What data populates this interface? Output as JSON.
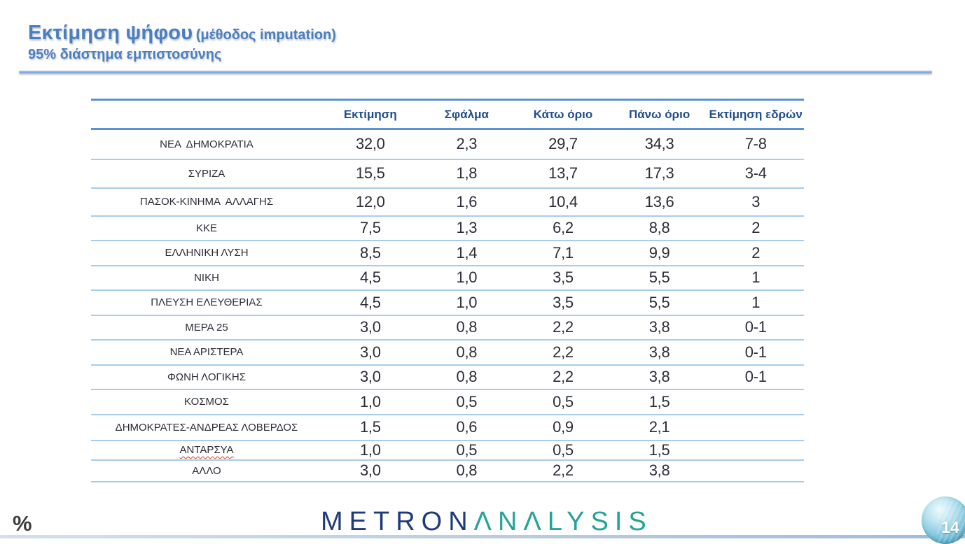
{
  "header": {
    "title": "Εκτίμηση ψήφου",
    "title_suffix": "(μέθοδος imputation)",
    "subtitle": "95% διάστημα εμπιστοσύνης"
  },
  "table": {
    "columns": [
      "",
      "Εκτίμηση",
      "Σφάλμα",
      "Κάτω όριο",
      "Πάνω όριο",
      "Εκτίμηση εδρών"
    ],
    "rows": [
      {
        "party": "ΝΕΑ  ΔΗΜΟΚΡΑΤΙΑ",
        "estimate": "32,0",
        "error": "2,3",
        "lower": "29,7",
        "upper": "34,3",
        "seats": "7-8"
      },
      {
        "party": "ΣΥΡΙΖΑ",
        "estimate": "15,5",
        "error": "1,8",
        "lower": "13,7",
        "upper": "17,3",
        "seats": "3-4"
      },
      {
        "party": "ΠΑΣΟΚ-ΚΙΝΗΜΑ  ΑΛΛΑΓΗΣ",
        "estimate": "12,0",
        "error": "1,6",
        "lower": "10,4",
        "upper": "13,6",
        "seats": "3"
      },
      {
        "party": "ΚΚΕ",
        "estimate": "7,5",
        "error": "1,3",
        "lower": "6,2",
        "upper": "8,8",
        "seats": "2"
      },
      {
        "party": "ΕΛΛΗΝΙΚΗ ΛΥΣΗ",
        "estimate": "8,5",
        "error": "1,4",
        "lower": "7,1",
        "upper": "9,9",
        "seats": "2"
      },
      {
        "party": "ΝΙΚΗ",
        "estimate": "4,5",
        "error": "1,0",
        "lower": "3,5",
        "upper": "5,5",
        "seats": "1"
      },
      {
        "party": "ΠΛΕΥΣΗ ΕΛΕΥΘΕΡΙΑΣ",
        "estimate": "4,5",
        "error": "1,0",
        "lower": "3,5",
        "upper": "5,5",
        "seats": "1"
      },
      {
        "party": "ΜΕΡΑ 25",
        "estimate": "3,0",
        "error": "0,8",
        "lower": "2,2",
        "upper": "3,8",
        "seats": "0-1"
      },
      {
        "party": "ΝΕΑ ΑΡΙΣΤΕΡΑ",
        "estimate": "3,0",
        "error": "0,8",
        "lower": "2,2",
        "upper": "3,8",
        "seats": "0-1"
      },
      {
        "party": "ΦΩΝΗ ΛΟΓΙΚΗΣ",
        "estimate": "3,0",
        "error": "0,8",
        "lower": "2,2",
        "upper": "3,8",
        "seats": "0-1"
      },
      {
        "party": "ΚΟΣΜΟΣ",
        "estimate": "1,0",
        "error": "0,5",
        "lower": "0,5",
        "upper": "1,5",
        "seats": ""
      },
      {
        "party": "ΔΗΜΟΚΡΑΤΕΣ-ΑΝΔΡΕΑΣ ΛΟΒΕΡΔΟΣ",
        "estimate": "1,5",
        "error": "0,6",
        "lower": "0,9",
        "upper": "2,1",
        "seats": ""
      },
      {
        "party": "ΑΝΤΑΡΣΥΑ",
        "estimate": "1,0",
        "error": "0,5",
        "lower": "0,5",
        "upper": "1,5",
        "seats": "",
        "spellcheck_underline": true
      },
      {
        "party": "ΑΛΛΟ",
        "estimate": "3,0",
        "error": "0,8",
        "lower": "2,2",
        "upper": "3,8",
        "seats": ""
      }
    ]
  },
  "footer": {
    "percent_mark": "%",
    "logo_metron": "METRON",
    "logo_analysis": "ΛNΛLYSIS",
    "page_number": "14"
  },
  "colors": {
    "title_blue": "#4a7fc1",
    "header_text_blue": "#1f4e8c",
    "strong_line_blue": "#5b93cf",
    "light_line_blue": "#a8cdec",
    "logo_navy": "#1e3c7b",
    "logo_teal": "#24a398",
    "badge_blue": "#5aa9c6",
    "spellcheck_red": "#d23b2a"
  }
}
